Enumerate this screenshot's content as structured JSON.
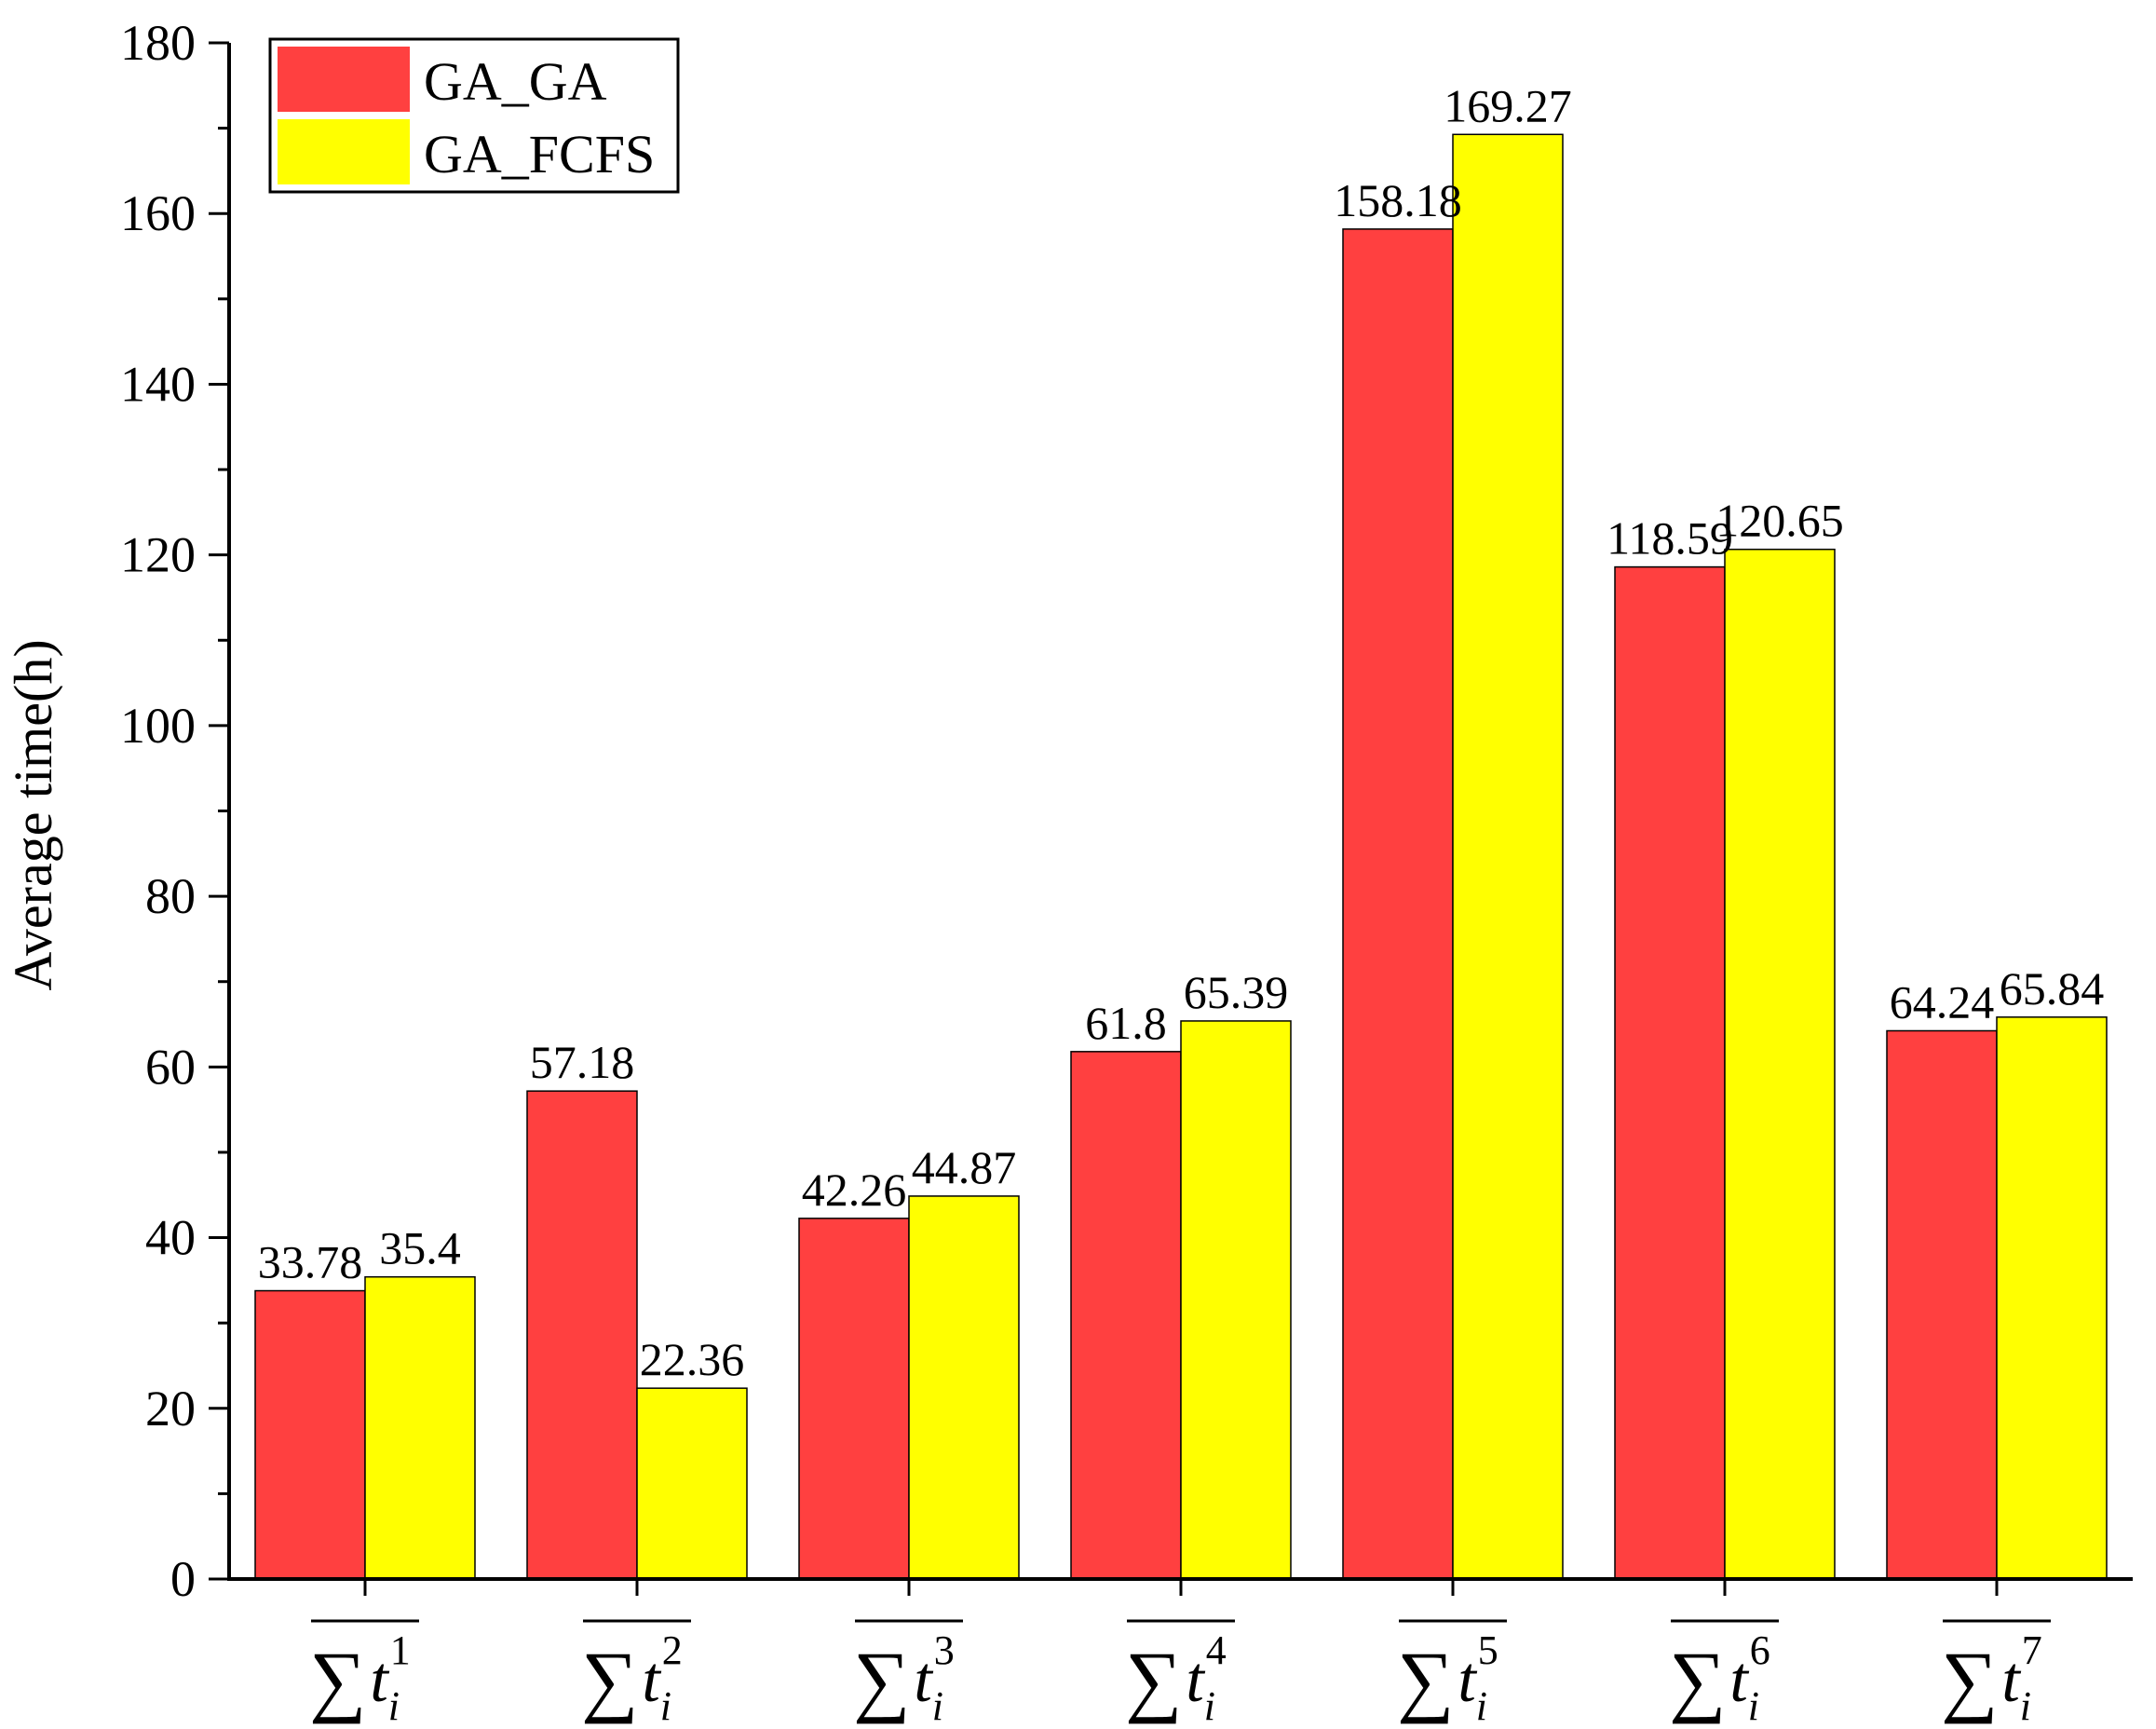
{
  "chart_data": {
    "type": "bar",
    "title": "",
    "xlabel": "",
    "ylabel": "Average time(h)",
    "ylim": [
      0,
      180
    ],
    "yticks": [
      0,
      20,
      40,
      60,
      80,
      100,
      120,
      140,
      160,
      180
    ],
    "grid": false,
    "legend_position": "top-left",
    "categories": [
      {
        "base": "∑t",
        "sub": "i",
        "sup": "1"
      },
      {
        "base": "∑t",
        "sub": "i",
        "sup": "2"
      },
      {
        "base": "∑t",
        "sub": "i",
        "sup": "3"
      },
      {
        "base": "∑t",
        "sub": "i",
        "sup": "4"
      },
      {
        "base": "∑t",
        "sub": "i",
        "sup": "5"
      },
      {
        "base": "∑t",
        "sub": "i",
        "sup": "6"
      },
      {
        "base": "∑t",
        "sub": "i",
        "sup": "7"
      }
    ],
    "series": [
      {
        "name": "GA_GA",
        "color": "#FF4040",
        "values": [
          33.78,
          57.18,
          42.26,
          61.8,
          158.18,
          118.59,
          64.24
        ],
        "labels": [
          "33.78",
          "57.18",
          "42.26",
          "61.8",
          "158.18",
          "118.59",
          "64.24"
        ]
      },
      {
        "name": "GA_FCFS",
        "color": "#FFFF00",
        "values": [
          35.4,
          22.36,
          44.87,
          65.39,
          169.27,
          120.65,
          65.84
        ],
        "labels": [
          "35.4",
          "22.36",
          "44.87",
          "65.39",
          "169.27",
          "120.65",
          "65.84"
        ]
      }
    ]
  }
}
